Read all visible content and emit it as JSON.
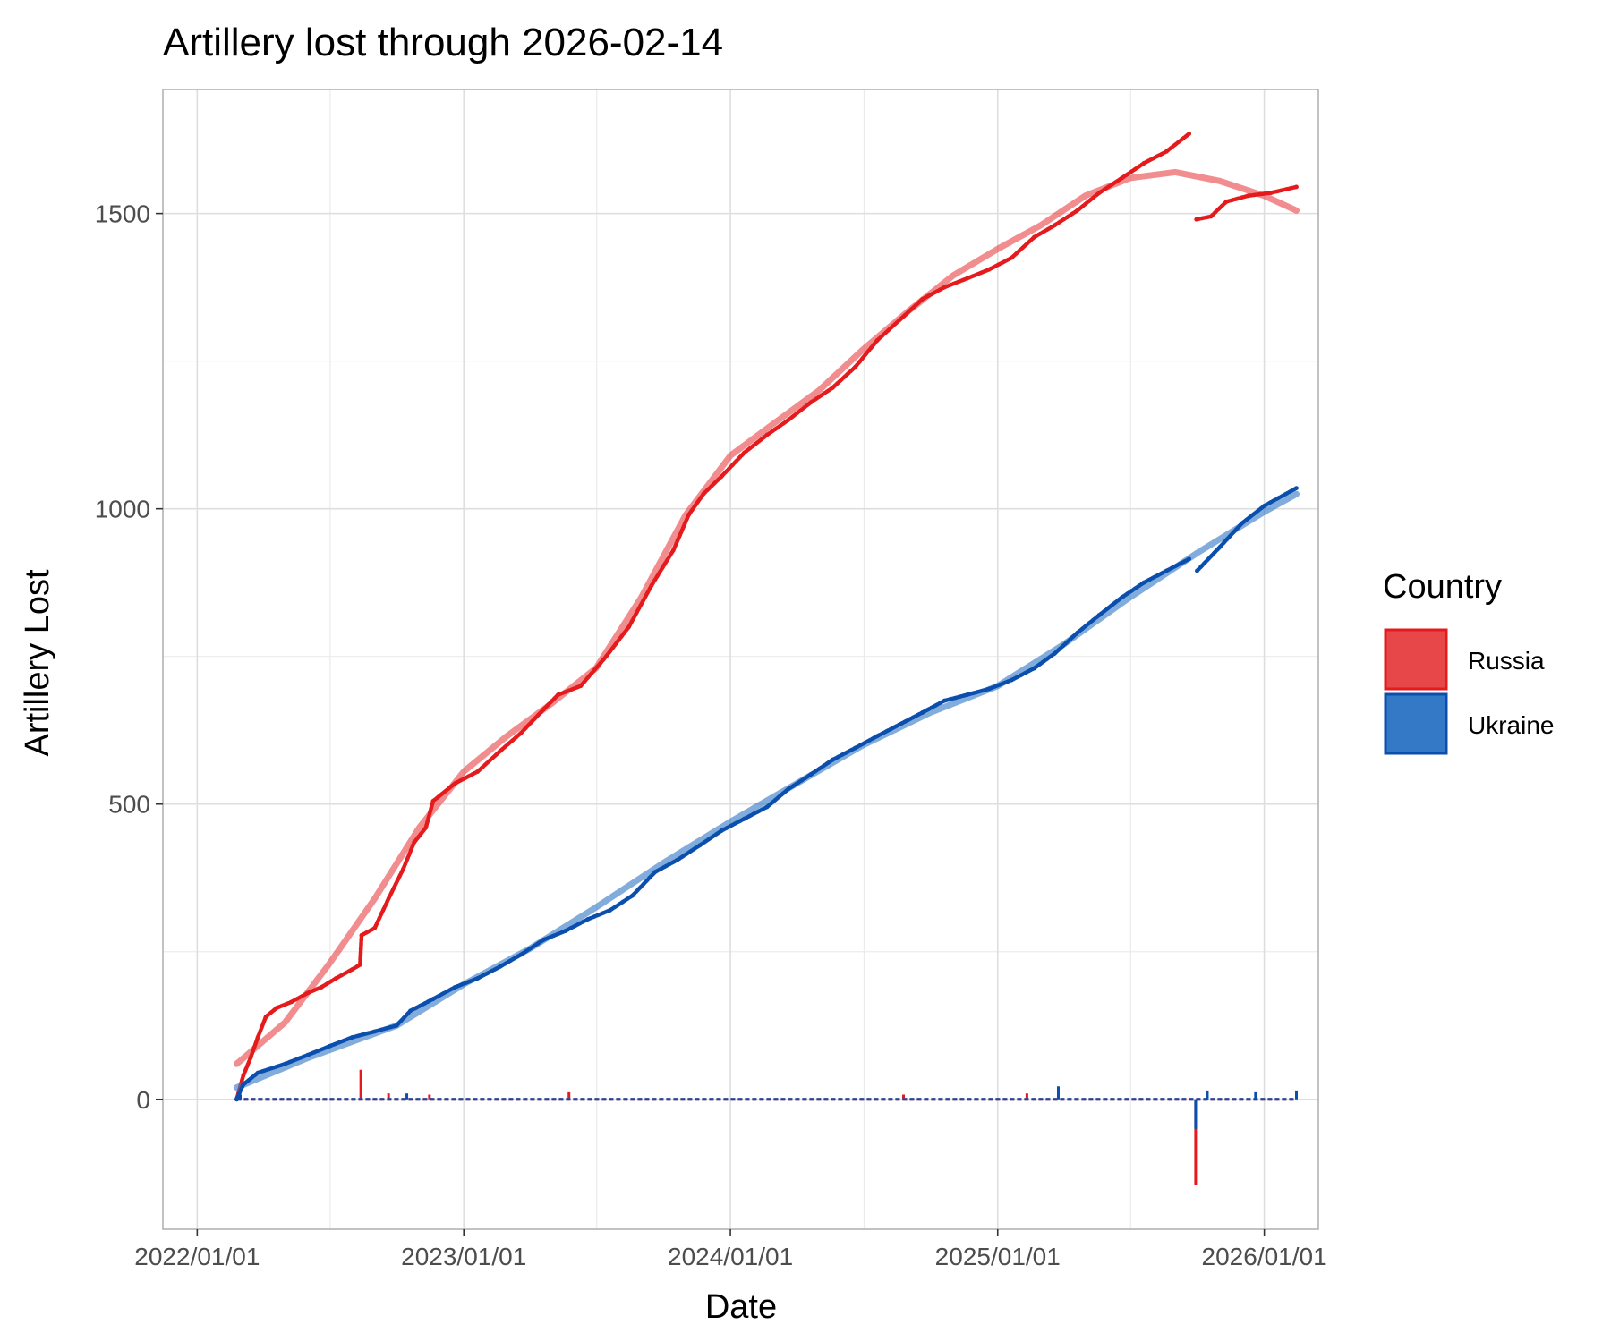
{
  "chart_data": {
    "type": "line",
    "title": "Artillery lost through 2026-02-14",
    "xlabel": "Date",
    "ylabel": "Artillery Lost",
    "x_range": [
      "2021-11-15",
      "2026-03-16"
    ],
    "ylim": [
      -220,
      1710
    ],
    "x_ticks": [
      {
        "value": "2022-01-01",
        "label": "2022/01/01"
      },
      {
        "value": "2023-01-01",
        "label": "2023/01/01"
      },
      {
        "value": "2024-01-01",
        "label": "2024/01/01"
      },
      {
        "value": "2025-01-01",
        "label": "2025/01/01"
      },
      {
        "value": "2026-01-01",
        "label": "2026/01/01"
      }
    ],
    "x_minor_ticks": [
      "2022-07-02",
      "2023-07-02",
      "2024-07-02",
      "2025-07-02"
    ],
    "y_ticks": [
      {
        "value": 0,
        "label": "0"
      },
      {
        "value": 500,
        "label": "500"
      },
      {
        "value": 1000,
        "label": "1000"
      },
      {
        "value": 1500,
        "label": "1500"
      }
    ],
    "y_minor_ticks": [
      250,
      750,
      1250
    ],
    "grid": true,
    "legend": {
      "title": "Country",
      "position": "right"
    },
    "series": [
      {
        "name": "Russia",
        "color": "#e41a1c",
        "fill": "#e8474a",
        "cumulative": [
          [
            "2022-02-24",
            0
          ],
          [
            "2022-03-05",
            40
          ],
          [
            "2022-03-15",
            70
          ],
          [
            "2022-03-25",
            105
          ],
          [
            "2022-04-05",
            140
          ],
          [
            "2022-04-20",
            155
          ],
          [
            "2022-05-10",
            165
          ],
          [
            "2022-06-01",
            180
          ],
          [
            "2022-06-20",
            190
          ],
          [
            "2022-07-10",
            205
          ],
          [
            "2022-08-01",
            220
          ],
          [
            "2022-08-12",
            228
          ],
          [
            "2022-08-14",
            278
          ],
          [
            "2022-09-01",
            290
          ],
          [
            "2022-09-20",
            340
          ],
          [
            "2022-10-10",
            390
          ],
          [
            "2022-10-25",
            435
          ],
          [
            "2022-11-10",
            460
          ],
          [
            "2022-11-20",
            505
          ],
          [
            "2022-12-20",
            535
          ],
          [
            "2023-01-20",
            555
          ],
          [
            "2023-02-20",
            590
          ],
          [
            "2023-03-20",
            620
          ],
          [
            "2023-04-20",
            660
          ],
          [
            "2023-05-10",
            685
          ],
          [
            "2023-06-10",
            700
          ],
          [
            "2023-07-15",
            750
          ],
          [
            "2023-08-15",
            800
          ],
          [
            "2023-09-15",
            870
          ],
          [
            "2023-10-15",
            930
          ],
          [
            "2023-11-05",
            990
          ],
          [
            "2023-11-25",
            1025
          ],
          [
            "2023-12-20",
            1055
          ],
          [
            "2024-01-20",
            1095
          ],
          [
            "2024-02-20",
            1125
          ],
          [
            "2024-03-20",
            1150
          ],
          [
            "2024-04-20",
            1180
          ],
          [
            "2024-05-20",
            1205
          ],
          [
            "2024-06-20",
            1240
          ],
          [
            "2024-07-20",
            1285
          ],
          [
            "2024-08-20",
            1320
          ],
          [
            "2024-09-20",
            1355
          ],
          [
            "2024-10-20",
            1375
          ],
          [
            "2024-11-20",
            1390
          ],
          [
            "2024-12-20",
            1405
          ],
          [
            "2025-01-20",
            1425
          ],
          [
            "2025-02-20",
            1460
          ],
          [
            "2025-03-20",
            1480
          ],
          [
            "2025-04-20",
            1505
          ],
          [
            "2025-05-20",
            1535
          ],
          [
            "2025-06-20",
            1560
          ],
          [
            "2025-07-20",
            1585
          ],
          [
            "2025-08-20",
            1605
          ],
          [
            "2025-09-20",
            1635
          ],
          [
            "2025-09-30",
            1490
          ],
          [
            "2025-10-20",
            1495
          ],
          [
            "2025-11-10",
            1520
          ],
          [
            "2025-12-10",
            1530
          ],
          [
            "2026-01-10",
            1535
          ],
          [
            "2026-02-14",
            1545
          ]
        ],
        "trend": [
          [
            "2022-02-24",
            60
          ],
          [
            "2022-05-01",
            130
          ],
          [
            "2022-07-01",
            230
          ],
          [
            "2022-09-01",
            340
          ],
          [
            "2022-11-01",
            460
          ],
          [
            "2023-01-01",
            555
          ],
          [
            "2023-03-01",
            615
          ],
          [
            "2023-05-01",
            670
          ],
          [
            "2023-07-01",
            730
          ],
          [
            "2023-09-01",
            850
          ],
          [
            "2023-11-01",
            990
          ],
          [
            "2024-01-01",
            1090
          ],
          [
            "2024-03-01",
            1145
          ],
          [
            "2024-05-01",
            1200
          ],
          [
            "2024-07-01",
            1270
          ],
          [
            "2024-09-01",
            1335
          ],
          [
            "2024-11-01",
            1395
          ],
          [
            "2025-01-01",
            1440
          ],
          [
            "2025-03-01",
            1480
          ],
          [
            "2025-05-01",
            1530
          ],
          [
            "2025-07-01",
            1560
          ],
          [
            "2025-09-01",
            1570
          ],
          [
            "2025-11-01",
            1555
          ],
          [
            "2026-01-01",
            1530
          ],
          [
            "2026-02-14",
            1505
          ]
        ],
        "daily_spikes": [
          [
            "2022-08-13",
            50
          ],
          [
            "2022-09-20",
            10
          ],
          [
            "2022-11-15",
            8
          ],
          [
            "2023-05-25",
            12
          ],
          [
            "2024-08-25",
            8
          ],
          [
            "2025-02-10",
            10
          ],
          [
            "2025-09-29",
            -145
          ]
        ]
      },
      {
        "name": "Ukraine",
        "color": "#0a4fad",
        "fill": "#3479c6",
        "cumulative": [
          [
            "2022-02-24",
            0
          ],
          [
            "2022-03-05",
            25
          ],
          [
            "2022-03-25",
            45
          ],
          [
            "2022-05-01",
            60
          ],
          [
            "2022-06-01",
            75
          ],
          [
            "2022-07-01",
            90
          ],
          [
            "2022-08-01",
            105
          ],
          [
            "2022-09-01",
            115
          ],
          [
            "2022-10-01",
            125
          ],
          [
            "2022-10-20",
            150
          ],
          [
            "2022-11-20",
            170
          ],
          [
            "2022-12-20",
            190
          ],
          [
            "2023-01-20",
            205
          ],
          [
            "2023-02-20",
            225
          ],
          [
            "2023-03-20",
            245
          ],
          [
            "2023-04-20",
            270
          ],
          [
            "2023-05-20",
            285
          ],
          [
            "2023-06-20",
            305
          ],
          [
            "2023-07-20",
            320
          ],
          [
            "2023-08-20",
            345
          ],
          [
            "2023-09-20",
            385
          ],
          [
            "2023-10-20",
            405
          ],
          [
            "2023-11-20",
            430
          ],
          [
            "2023-12-20",
            455
          ],
          [
            "2024-01-20",
            475
          ],
          [
            "2024-02-20",
            495
          ],
          [
            "2024-03-20",
            525
          ],
          [
            "2024-04-20",
            550
          ],
          [
            "2024-05-20",
            575
          ],
          [
            "2024-06-20",
            595
          ],
          [
            "2024-07-20",
            615
          ],
          [
            "2024-08-20",
            635
          ],
          [
            "2024-09-20",
            655
          ],
          [
            "2024-10-20",
            675
          ],
          [
            "2024-11-20",
            685
          ],
          [
            "2024-12-20",
            695
          ],
          [
            "2025-01-20",
            710
          ],
          [
            "2025-02-20",
            730
          ],
          [
            "2025-03-20",
            755
          ],
          [
            "2025-04-20",
            790
          ],
          [
            "2025-05-20",
            820
          ],
          [
            "2025-06-20",
            850
          ],
          [
            "2025-07-20",
            875
          ],
          [
            "2025-08-20",
            895
          ],
          [
            "2025-09-20",
            915
          ],
          [
            "2025-10-01",
            895
          ],
          [
            "2025-11-01",
            935
          ],
          [
            "2025-12-01",
            975
          ],
          [
            "2026-01-01",
            1005
          ],
          [
            "2026-02-14",
            1035
          ]
        ],
        "trend": [
          [
            "2022-02-24",
            20
          ],
          [
            "2022-06-01",
            70
          ],
          [
            "2022-10-01",
            125
          ],
          [
            "2023-01-01",
            195
          ],
          [
            "2023-04-01",
            255
          ],
          [
            "2023-07-01",
            325
          ],
          [
            "2023-10-01",
            400
          ],
          [
            "2024-01-01",
            470
          ],
          [
            "2024-04-01",
            535
          ],
          [
            "2024-07-01",
            600
          ],
          [
            "2024-10-01",
            655
          ],
          [
            "2025-01-01",
            700
          ],
          [
            "2025-04-01",
            770
          ],
          [
            "2025-07-01",
            850
          ],
          [
            "2025-10-01",
            925
          ],
          [
            "2026-01-01",
            995
          ],
          [
            "2026-02-14",
            1025
          ]
        ],
        "daily_spikes": [
          [
            "2022-03-01",
            8
          ],
          [
            "2022-10-15",
            10
          ],
          [
            "2025-03-25",
            22
          ],
          [
            "2025-09-29",
            -50
          ],
          [
            "2025-10-15",
            15
          ],
          [
            "2025-12-20",
            12
          ],
          [
            "2026-02-14",
            15
          ]
        ]
      }
    ]
  }
}
